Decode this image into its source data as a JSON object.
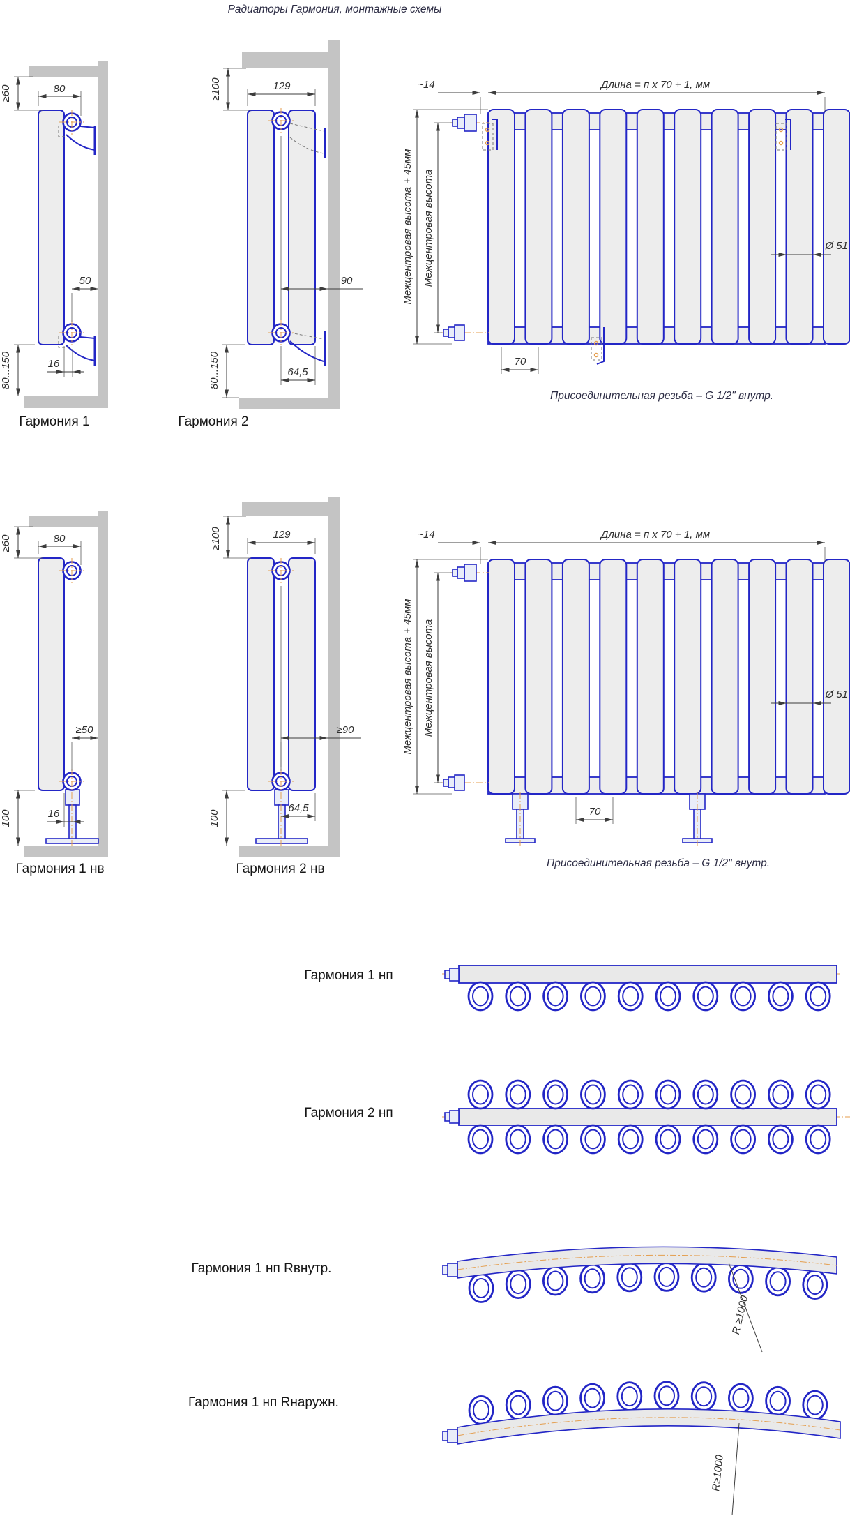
{
  "title": "Радиаторы Гармония, монтажные схемы",
  "colors": {
    "outline": "#2326c6",
    "dim": "#3c3c3c",
    "wall": "#c4c4c4",
    "fill": "#ededed",
    "centerline": "#e49e4e",
    "text": "#2c2c44"
  },
  "row1": {
    "garmoniya1": {
      "label": "Гармония 1",
      "dim_ceiling": "≥60",
      "dim_depth": "80",
      "dim_wall": "50",
      "dim_back": "16",
      "dim_floor": "80...150"
    },
    "garmoniya2": {
      "label": "Гармония 2",
      "dim_ceiling": "≥100",
      "dim_depth": "129",
      "dim_wall": "90",
      "dim_bottom": "64,5",
      "dim_floor": "80...150"
    },
    "front": {
      "dim_end": "~14",
      "dim_length": "Длина = п х 70 + 1, мм",
      "dim_height_outer": "Межцентровая высота + 45мм",
      "dim_height_center": "Межцентровая высота",
      "dim_diameter": "Ø 51",
      "dim_pitch": "70",
      "sections": 10,
      "note": "Присоединительная резьба – G 1/2\" внутр."
    }
  },
  "row2": {
    "garmoniya1nv": {
      "label": "Гармония 1 нв",
      "dim_ceiling": "≥60",
      "dim_depth": "80",
      "dim_wall": "≥50",
      "dim_back": "16",
      "dim_floor": "100"
    },
    "garmoniya2nv": {
      "label": "Гармония 2 нв",
      "dim_ceiling": "≥100",
      "dim_depth": "129",
      "dim_wall": "≥90",
      "dim_bottom": "64,5",
      "dim_floor": "100"
    },
    "front": {
      "dim_end": "~14",
      "dim_length": "Длина = п х 70 + 1, мм",
      "dim_height_outer": "Межцентровая высота + 45мм",
      "dim_height_center": "Межцентровая высота",
      "dim_diameter": "Ø 51",
      "dim_pitch": "70",
      "sections": 10,
      "note": "Присоединительная резьба – G 1/2\" внутр."
    }
  },
  "top_views": {
    "np1": {
      "label": "Гармония 1 нп",
      "sections": 10
    },
    "np2": {
      "label": "Гармония 2 нп",
      "sections": 10
    },
    "np1_r_inner": {
      "label": "Гармония 1 нп Rвнутр.",
      "radius": "R ≥1000",
      "sections": 10
    },
    "np1_r_outer": {
      "label": "Гармония 1 нп Rнаружн.",
      "radius": "R≥1000",
      "sections": 10
    }
  }
}
